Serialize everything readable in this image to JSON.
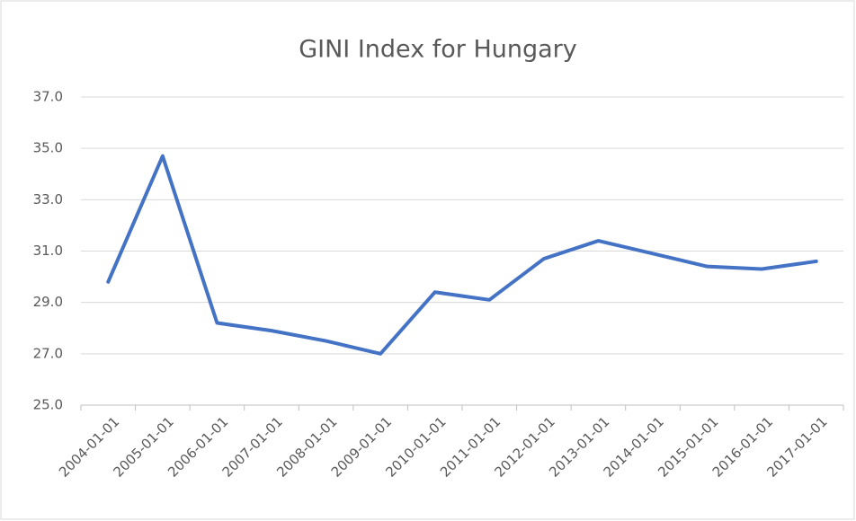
{
  "chart_data": {
    "type": "line",
    "title": "GINI Index for Hungary",
    "categories": [
      "2004-01-01",
      "2005-01-01",
      "2006-01-01",
      "2007-01-01",
      "2008-01-01",
      "2009-01-01",
      "2010-01-01",
      "2011-01-01",
      "2012-01-01",
      "2013-01-01",
      "2014-01-01",
      "2015-01-01",
      "2016-01-01",
      "2017-01-01"
    ],
    "series": [
      {
        "name": "GINI Index",
        "color": "#4472c4",
        "values": [
          29.8,
          34.7,
          28.2,
          27.9,
          27.5,
          27.0,
          29.4,
          29.1,
          30.7,
          31.4,
          30.9,
          30.4,
          30.3,
          30.6
        ]
      }
    ],
    "ylim": [
      25,
      37
    ],
    "yticks": [
      {
        "value": 25,
        "label": "25.0"
      },
      {
        "value": 27,
        "label": "27.0"
      },
      {
        "value": 29,
        "label": "29.0"
      },
      {
        "value": 31,
        "label": "31.0"
      },
      {
        "value": 33,
        "label": "33.0"
      },
      {
        "value": 35,
        "label": "35.0"
      },
      {
        "value": 37,
        "label": "37.0"
      }
    ],
    "grid": true
  }
}
